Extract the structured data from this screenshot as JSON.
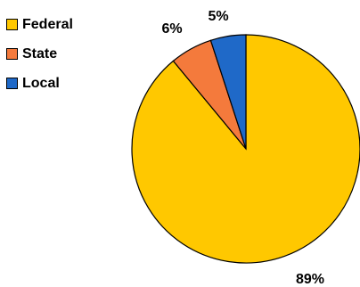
{
  "chart_data": {
    "type": "pie",
    "categories": [
      "Federal",
      "State",
      "Local"
    ],
    "values": [
      89,
      6,
      5
    ],
    "labels": [
      "89%",
      "6%",
      "5%"
    ],
    "colors": [
      "#ffc800",
      "#f47a3c",
      "#1f69c8"
    ],
    "legend_position": "left"
  }
}
